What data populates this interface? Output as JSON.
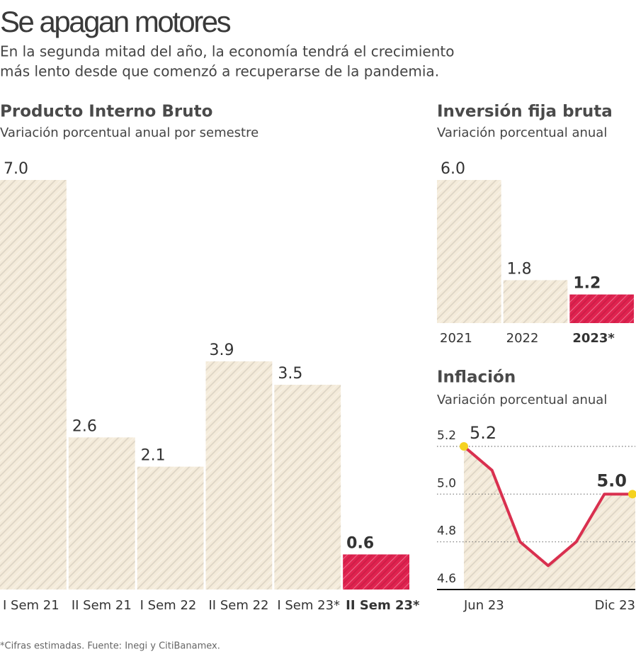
{
  "header": {
    "title": "Se apagan motores",
    "subtitle": [
      "En la segunda mitad del año, la economía tendrá el crecimiento",
      "más lento desde que comenzó a recuperarse de la pandemia."
    ]
  },
  "chart_data": [
    {
      "type": "bar",
      "title": "Producto Interno Bruto",
      "subtitle": "Variación porcentual anual por semestre",
      "categories": [
        "I Sem 21",
        "II Sem 21",
        "I Sem 22",
        "II Sem 22",
        "I Sem 23*",
        "II Sem 23*"
      ],
      "values": [
        7.0,
        2.6,
        2.1,
        3.9,
        3.5,
        0.6
      ],
      "value_labels": [
        "7.0",
        "2.6",
        "2.1",
        "3.9",
        "3.5",
        "0.6"
      ],
      "colors": [
        "#f4ebda",
        "#f4ebda",
        "#f4ebda",
        "#f4ebda",
        "#f4ebda",
        "#e0224f"
      ],
      "ylim": [
        0,
        7
      ]
    },
    {
      "type": "bar",
      "title": "Inversión fija bruta",
      "subtitle": "Variación porcentual anual",
      "categories": [
        "2021",
        "2022",
        "2023*"
      ],
      "values": [
        6.0,
        1.8,
        1.2
      ],
      "value_labels": [
        "6.0",
        "1.8",
        "1.2"
      ],
      "colors": [
        "#f4ebda",
        "#f4ebda",
        "#e0224f"
      ],
      "ylim": [
        0,
        6
      ]
    },
    {
      "type": "line",
      "title": "Inflación",
      "subtitle": "Variación porcentual anual",
      "categories": [
        "Jun 23",
        null,
        null,
        null,
        null,
        null,
        "Dic 23"
      ],
      "values": [
        5.2,
        5.1,
        4.8,
        4.7,
        4.8,
        5.0,
        5.0
      ],
      "value_labels": [
        "5.2",
        null,
        null,
        null,
        null,
        null,
        "5.0"
      ],
      "color": "#d9304f",
      "marker_color": "#f5d21f",
      "area_color": "#f4ebda",
      "ylim": [
        4.6,
        5.2
      ],
      "yticks": [
        5.2,
        {
          "value": 5.0,
          "label": "5.0"
        },
        4.8,
        {
          "value": 4.6,
          "label": "4.6"
        }
      ],
      "grid": true
    }
  ],
  "footnote": "*Cifras estimadas. Fuente: Inegi y CitiBanamex."
}
